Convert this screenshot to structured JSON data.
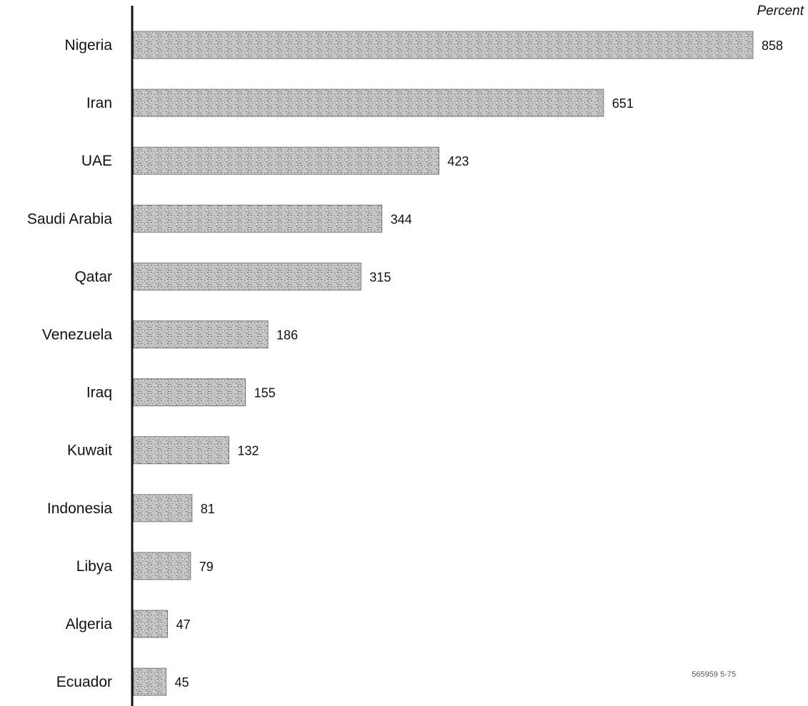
{
  "chart_data": {
    "type": "bar",
    "orientation": "horizontal",
    "unit_label": "Percent",
    "categories": [
      "Nigeria",
      "Iran",
      "UAE",
      "Saudi Arabia",
      "Qatar",
      "Venezuela",
      "Iraq",
      "Kuwait",
      "Indonesia",
      "Libya",
      "Algeria",
      "Ecuador"
    ],
    "values": [
      858,
      651,
      423,
      344,
      315,
      186,
      155,
      132,
      81,
      79,
      47,
      45
    ],
    "xlim": [
      0,
      858
    ],
    "grid": false,
    "legend": "none",
    "bar_fill": "#b8b8b8",
    "bar_texture": "#7a7a7a",
    "axis_color": "#111111"
  },
  "footer": {
    "reference_code": "565959 5-75"
  }
}
